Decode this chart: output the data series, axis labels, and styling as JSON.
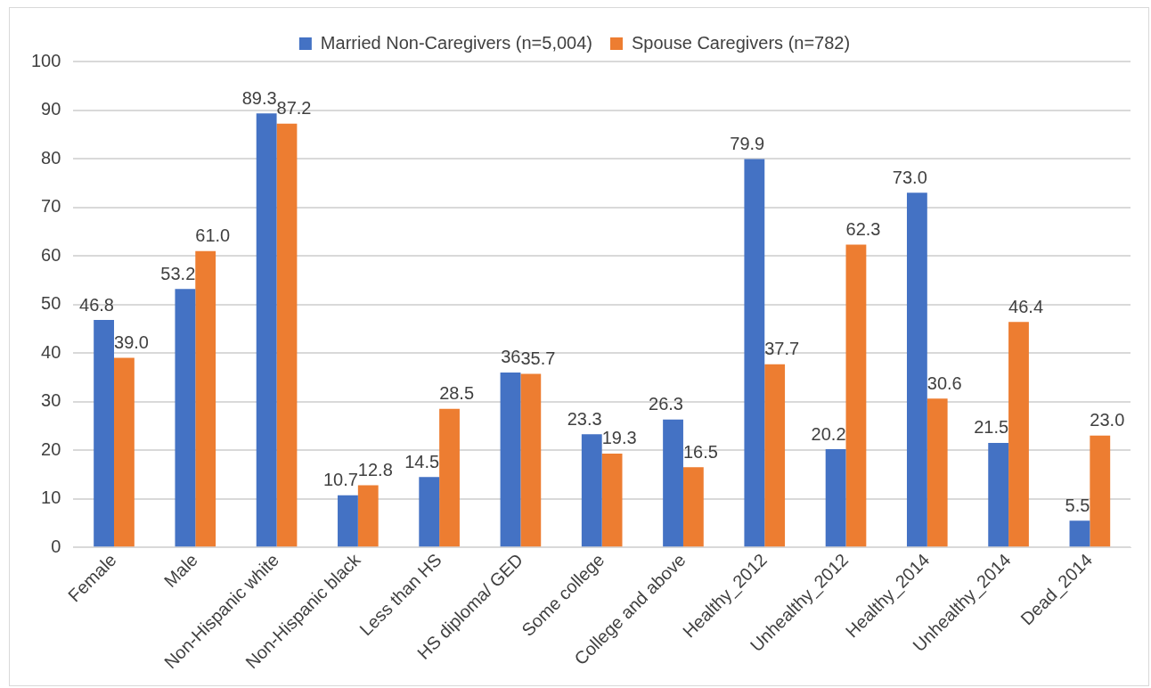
{
  "chart_data": {
    "type": "bar",
    "categories": [
      "Female",
      "Male",
      "Non-Hispanic white",
      "Non-Hispanic black",
      "Less than HS",
      "HS diploma/ GED",
      "Some college",
      "College and above",
      "Healthy_2012",
      "Unhealthy_2012",
      "Healthy_2014",
      "Unhealthy_2014",
      "Dead_2014"
    ],
    "series": [
      {
        "name": "Married Non-Caregivers (n=5,004)",
        "color": "#4472c4",
        "values": [
          46.8,
          53.2,
          89.3,
          10.7,
          14.5,
          36,
          23.3,
          26.3,
          79.9,
          20.2,
          73.0,
          21.5,
          5.5
        ],
        "value_labels": [
          "46.8",
          "53.2",
          "89.3",
          "10.7",
          "14.5",
          "36",
          "23.3",
          "26.3",
          "79.9",
          "20.2",
          "73.0",
          "21.5",
          "5.5"
        ]
      },
      {
        "name": "Spouse Caregivers (n=782)",
        "color": "#ed7d31",
        "values": [
          39.0,
          61.0,
          87.2,
          12.8,
          28.5,
          35.7,
          19.3,
          16.5,
          37.7,
          62.3,
          30.6,
          46.4,
          23.0
        ],
        "value_labels": [
          "39.0",
          "61.0",
          "87.2",
          "12.8",
          "28.5",
          "35.7",
          "19.3",
          "16.5",
          "37.7",
          "62.3",
          "30.6",
          "46.4",
          "23.0"
        ]
      }
    ],
    "ylim": [
      0,
      100
    ],
    "yticks": [
      0,
      10,
      20,
      30,
      40,
      50,
      60,
      70,
      80,
      90,
      100
    ],
    "grid": "y",
    "legend": "top"
  }
}
